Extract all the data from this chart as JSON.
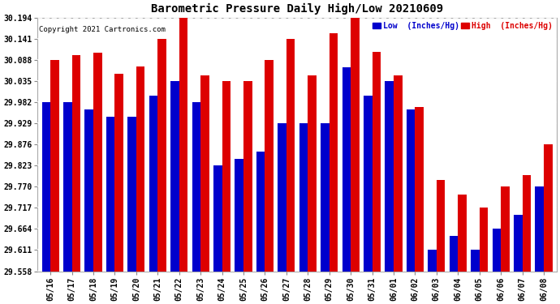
{
  "title": "Barometric Pressure Daily High/Low 20210609",
  "copyright": "Copyright 2021 Cartronics.com",
  "background_color": "#ffffff",
  "bar_low_color": "#0000cc",
  "bar_high_color": "#dd0000",
  "legend_low_label": "Low  (Inches/Hg)",
  "legend_high_label": "High  (Inches/Hg)",
  "dates": [
    "05/16",
    "05/17",
    "05/18",
    "05/19",
    "05/20",
    "05/21",
    "05/22",
    "05/23",
    "05/24",
    "05/25",
    "05/26",
    "05/27",
    "05/28",
    "05/29",
    "05/30",
    "05/31",
    "06/01",
    "06/02",
    "06/03",
    "06/04",
    "06/05",
    "06/06",
    "06/07",
    "06/08"
  ],
  "high_values": [
    30.088,
    30.1,
    30.106,
    30.055,
    30.073,
    30.141,
    30.194,
    30.05,
    30.035,
    30.035,
    30.088,
    30.141,
    30.05,
    30.155,
    30.194,
    30.108,
    30.05,
    29.97,
    29.788,
    29.75,
    29.717,
    29.77,
    29.8,
    29.876
  ],
  "low_values": [
    29.982,
    29.982,
    29.964,
    29.946,
    29.946,
    30.0,
    30.035,
    29.982,
    29.823,
    29.84,
    29.858,
    29.929,
    29.929,
    29.929,
    30.07,
    30.0,
    30.035,
    29.964,
    29.612,
    29.646,
    29.612,
    29.664,
    29.7,
    29.77
  ],
  "ylim_min": 29.558,
  "ylim_max": 30.194,
  "yticks": [
    29.558,
    29.611,
    29.664,
    29.717,
    29.77,
    29.823,
    29.876,
    29.929,
    29.982,
    30.035,
    30.088,
    30.141,
    30.194
  ],
  "figwidth": 6.9,
  "figheight": 3.75,
  "dpi": 100
}
